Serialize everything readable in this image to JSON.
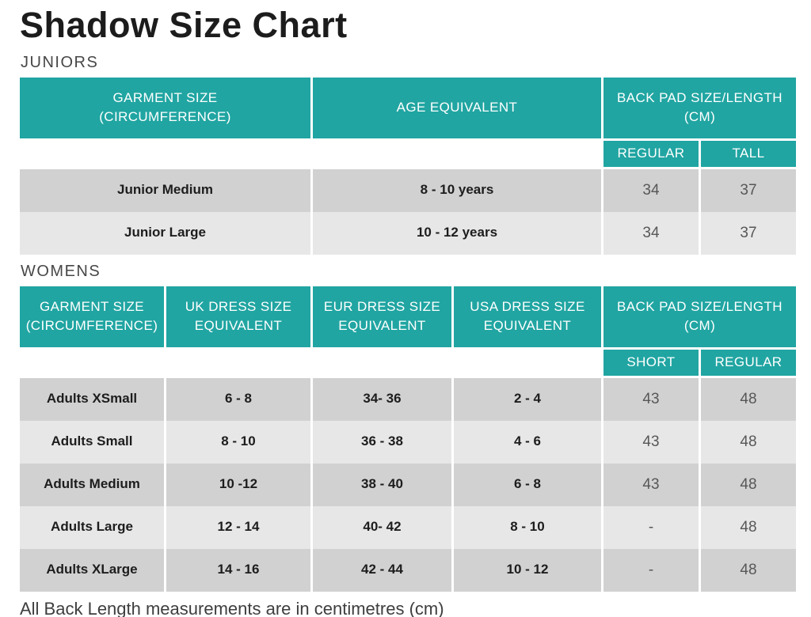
{
  "title": "Shadow Size Chart",
  "footnote": "All Back Length measurements are in centimetres (cm)",
  "colors": {
    "teal": "#20a5a2",
    "row_dark": "#d1d1d1",
    "row_light": "#e7e7e7",
    "ink": "#1d1d1d",
    "val": "#575757",
    "muted": "#474747"
  },
  "juniors": {
    "label": "JUNIORS",
    "headers": {
      "garment_line1": "GARMENT SIZE",
      "garment_line2": "(CIRCUMFERENCE)",
      "age": "AGE EQUIVALENT",
      "backpad_line1": "BACK PAD SIZE/LENGTH",
      "backpad_line2": "(CM)",
      "sub_left": "REGULAR",
      "sub_right": "TALL"
    },
    "rows": [
      {
        "size": "Junior Medium",
        "age": "8 - 10 years",
        "regular": "34",
        "tall": "37"
      },
      {
        "size": "Junior Large",
        "age": "10 - 12 years",
        "regular": "34",
        "tall": "37"
      }
    ]
  },
  "womens": {
    "label": "WOMENS",
    "headers": {
      "garment_line1": "GARMENT SIZE",
      "garment_line2": "(CIRCUMFERENCE)",
      "uk_line1": "UK DRESS SIZE",
      "uk_line2": "EQUIVALENT",
      "eur_line1": "EUR DRESS SIZE",
      "eur_line2": "EQUIVALENT",
      "usa_line1": "USA DRESS SIZE",
      "usa_line2": "EQUIVALENT",
      "backpad_line1": "BACK PAD SIZE/LENGTH",
      "backpad_line2": "(CM)",
      "sub_left": "SHORT",
      "sub_right": "REGULAR"
    },
    "rows": [
      {
        "size": "Adults XSmall",
        "uk": "6 - 8",
        "eur": "34- 36",
        "usa": "2 - 4",
        "short": "43",
        "regular": "48"
      },
      {
        "size": "Adults Small",
        "uk": "8 - 10",
        "eur": "36 - 38",
        "usa": "4 - 6",
        "short": "43",
        "regular": "48"
      },
      {
        "size": "Adults Medium",
        "uk": "10 -12",
        "eur": "38 - 40",
        "usa": "6 - 8",
        "short": "43",
        "regular": "48"
      },
      {
        "size": "Adults Large",
        "uk": "12 - 14",
        "eur": "40- 42",
        "usa": "8 - 10",
        "short": "-",
        "regular": "48"
      },
      {
        "size": "Adults XLarge",
        "uk": "14 - 16",
        "eur": "42 - 44",
        "usa": "10 - 12",
        "short": "-",
        "regular": "48"
      }
    ]
  }
}
